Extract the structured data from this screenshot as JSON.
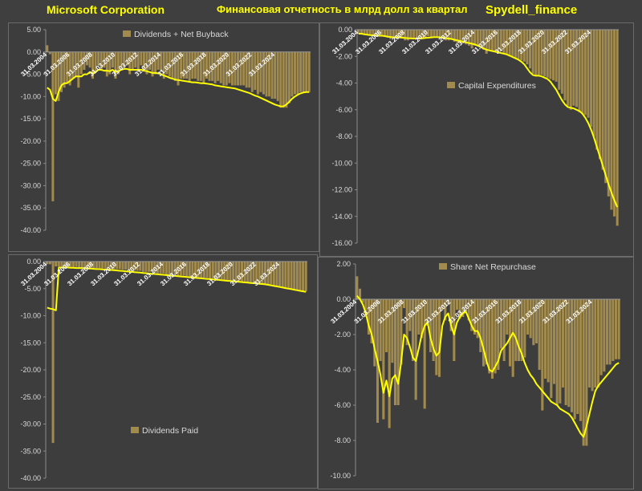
{
  "header": {
    "company": "Microsoft Corporation",
    "subtitle": "Финансовая отчетность в млрд долл за квартал",
    "brand": "Spydell_finance"
  },
  "colors": {
    "background": "#3f3f3f",
    "bar": "#a08a4e",
    "line": "#ffff00",
    "text": "#d9d9d9"
  },
  "chart_data": [
    {
      "type": "bar",
      "legend": "Dividends + Net Buyback",
      "legend_position": "top-center",
      "ylim": [
        -40,
        5
      ],
      "yticks": [
        "5.00",
        "0.00",
        "-5.00",
        "-10.00",
        "-15.00",
        "-20.00",
        "-25.00",
        "-30.00",
        "-35.00",
        "-40.00"
      ],
      "xtick_labels": [
        "31.03.2004",
        "31.03.2006",
        "31.03.2008",
        "31.03.2010",
        "31.03.2012",
        "31.03.2014",
        "31.03.2016",
        "31.03.2018",
        "31.03.2020",
        "31.03.2022",
        "31.03.2024"
      ],
      "values": [
        1.5,
        -0.5,
        -33.5,
        -9.5,
        -11,
        -9,
        -8,
        -7,
        -7.5,
        -6,
        -5.5,
        -8,
        -5,
        -4,
        -3,
        -3.5,
        -6,
        -4.5,
        -3,
        -4,
        -3.5,
        -5.5,
        -5,
        -3.5,
        -6,
        -5,
        -4,
        -3.5,
        -3,
        -5,
        -4,
        -3.5,
        -4.5,
        -3,
        -4,
        -5,
        -4,
        -5.5,
        -5,
        -4,
        -4.5,
        -6,
        -5,
        -5.5,
        -6,
        -6.5,
        -7.5,
        -6,
        -6,
        -6,
        -6.5,
        -6,
        -6,
        -6.5,
        -6.5,
        -7,
        -6,
        -6.5,
        -6.5,
        -7,
        -6.5,
        -7,
        -7.5,
        -7.5,
        -7,
        -7.5,
        -7.5,
        -7.5,
        -7.5,
        -7.5,
        -8,
        -8,
        -9,
        -8.5,
        -9.5,
        -9,
        -9.5,
        -10,
        -10,
        -10.5,
        -10.5,
        -11,
        -12.5,
        -12.5,
        -12.5,
        -11.5,
        -10,
        -9.5,
        -9.5,
        -9,
        -9,
        -9,
        -9
      ],
      "trend": [
        -8,
        -8.5,
        -10.5,
        -11,
        -9,
        -7.5,
        -7,
        -7,
        -6.5,
        -6,
        -5.5,
        -5.5,
        -5.5,
        -5,
        -5,
        -4.5,
        -4.8,
        -4.5,
        -4,
        -4,
        -4.2,
        -4.2,
        -4.3,
        -4,
        -4.5,
        -4.3,
        -4,
        -3.8,
        -3.8,
        -4,
        -4,
        -4,
        -4,
        -4,
        -4.2,
        -4.3,
        -4.5,
        -4.7,
        -4.7,
        -4.8,
        -5,
        -5.3,
        -5.5,
        -5.8,
        -6,
        -6.2,
        -6.3,
        -6.4,
        -6.5,
        -6.6,
        -6.7,
        -6.8,
        -6.8,
        -6.9,
        -7,
        -7,
        -7.1,
        -7.2,
        -7.3,
        -7.5,
        -7.6,
        -7.7,
        -7.8,
        -7.9,
        -8,
        -8.1,
        -8.2,
        -8.4,
        -8.6,
        -8.8,
        -9,
        -9.2,
        -9.5,
        -9.8,
        -10,
        -10.3,
        -10.6,
        -10.9,
        -11.2,
        -11.5,
        -11.8,
        -12,
        -12.2,
        -12.2,
        -11.8,
        -11.2,
        -10.5,
        -10,
        -9.6,
        -9.3,
        -9.1,
        -9,
        -9
      ]
    },
    {
      "type": "bar",
      "legend": "Capital Expenditures",
      "legend_position": "center-right",
      "ylim": [
        -16,
        0
      ],
      "yticks": [
        "0.00",
        "-2.00",
        "-4.00",
        "-6.00",
        "-8.00",
        "-10.00",
        "-12.00",
        "-14.00",
        "-16.00"
      ],
      "xtick_labels": [
        "31.03.2004",
        "31.03.2006",
        "31.03.2008",
        "31.03.2010",
        "31.03.2012",
        "31.03.2014",
        "31.03.2016",
        "31.03.2018",
        "31.03.2020",
        "31.03.2022",
        "31.03.2024"
      ],
      "values": [
        -0.3,
        -0.3,
        -0.3,
        -0.4,
        -0.4,
        -0.4,
        -0.5,
        -0.4,
        -0.4,
        -0.5,
        -0.6,
        -0.7,
        -0.6,
        -0.6,
        -0.5,
        -0.6,
        -0.8,
        -0.8,
        -0.7,
        -0.7,
        -0.6,
        -0.7,
        -0.6,
        -0.6,
        -0.5,
        -0.6,
        -0.5,
        -0.5,
        -0.6,
        -0.6,
        -0.8,
        -0.8,
        -0.7,
        -0.9,
        -1.0,
        -1.0,
        -1.0,
        -1.1,
        -1.2,
        -1.4,
        -1.2,
        -1.2,
        -1.3,
        -1.5,
        -1.8,
        -1.5,
        -1.6,
        -1.7,
        -1.7,
        -1.6,
        -1.8,
        -1.8,
        -2.0,
        -2.0,
        -2.1,
        -2.2,
        -2.3,
        -2.4,
        -2.6,
        -2.9,
        -3.3,
        -3.5,
        -3.4,
        -3.4,
        -3.5,
        -3.6,
        -3.7,
        -3.8,
        -3.9,
        -4.5,
        -4.8,
        -5.3,
        -5.7,
        -6.0,
        -5.7,
        -5.8,
        -6.2,
        -6.3,
        -6.4,
        -6.6,
        -7.3,
        -8.0,
        -9.0,
        -9.7,
        -10.5,
        -11.5,
        -12.5,
        -13.5,
        -14.0,
        -14.7
      ],
      "trend": [
        -0.3,
        -0.3,
        -0.35,
        -0.38,
        -0.4,
        -0.42,
        -0.45,
        -0.45,
        -0.45,
        -0.48,
        -0.52,
        -0.55,
        -0.57,
        -0.58,
        -0.58,
        -0.6,
        -0.62,
        -0.64,
        -0.65,
        -0.66,
        -0.66,
        -0.66,
        -0.65,
        -0.62,
        -0.6,
        -0.58,
        -0.56,
        -0.56,
        -0.57,
        -0.6,
        -0.63,
        -0.66,
        -0.7,
        -0.75,
        -0.8,
        -0.85,
        -0.9,
        -0.95,
        -1.0,
        -1.05,
        -1.1,
        -1.2,
        -1.3,
        -1.4,
        -1.5,
        -1.55,
        -1.6,
        -1.65,
        -1.7,
        -1.75,
        -1.8,
        -1.85,
        -1.95,
        -2.05,
        -2.15,
        -2.25,
        -2.4,
        -2.6,
        -2.9,
        -3.2,
        -3.4,
        -3.45,
        -3.45,
        -3.5,
        -3.6,
        -3.7,
        -3.9,
        -4.2,
        -4.5,
        -4.9,
        -5.3,
        -5.6,
        -5.8,
        -5.85,
        -5.9,
        -6.0,
        -6.1,
        -6.3,
        -6.6,
        -7.0,
        -7.5,
        -8.1,
        -8.8,
        -9.5,
        -10.2,
        -10.9,
        -11.6,
        -12.2,
        -12.8,
        -13.3
      ]
    },
    {
      "type": "bar",
      "legend": "Dividends Paid",
      "legend_position": "bottom-center",
      "ylim": [
        -40,
        0
      ],
      "yticks": [
        "0.00",
        "-5.00",
        "-10.00",
        "-15.00",
        "-20.00",
        "-25.00",
        "-30.00",
        "-35.00",
        "-40.00"
      ],
      "xtick_labels": [
        "31.03.2004",
        "31.03.2006",
        "31.03.2008",
        "31.03.2010",
        "31.03.2012",
        "31.03.2014",
        "31.03.2016",
        "31.03.2018",
        "31.03.2020",
        "31.03.2022",
        "31.03.2024"
      ],
      "values": [
        -0.5,
        -0.5,
        -33.5,
        -0.9,
        -0.9,
        -0.9,
        -0.9,
        -1.0,
        -1.0,
        -1.0,
        -1.0,
        -1.1,
        -1.1,
        -1.1,
        -1.1,
        -1.2,
        -1.2,
        -1.2,
        -1.2,
        -1.3,
        -1.3,
        -1.3,
        -1.3,
        -1.4,
        -1.4,
        -1.4,
        -1.5,
        -1.5,
        -1.5,
        -1.6,
        -1.7,
        -1.7,
        -1.7,
        -1.9,
        -1.9,
        -1.9,
        -1.9,
        -2.1,
        -2.2,
        -2.2,
        -2.2,
        -2.4,
        -2.4,
        -2.4,
        -2.4,
        -2.6,
        -2.6,
        -2.6,
        -2.7,
        -2.8,
        -2.8,
        -2.9,
        -2.9,
        -3.0,
        -3.0,
        -3.0,
        -3.1,
        -3.1,
        -3.2,
        -3.2,
        -3.3,
        -3.4,
        -3.4,
        -3.5,
        -3.6,
        -3.6,
        -3.7,
        -3.8,
        -3.8,
        -3.9,
        -4.0,
        -4.0,
        -4.1,
        -4.2,
        -4.3,
        -4.3,
        -4.4,
        -4.5,
        -4.5,
        -4.6,
        -4.7,
        -4.8,
        -4.8,
        -4.9,
        -5.0,
        -5.1,
        -5.2,
        -5.3,
        -5.4,
        -5.5
      ],
      "trend": [
        -8.5,
        -8.7,
        -8.8,
        -9.0,
        -1.1,
        -1.1,
        -1.1,
        -1.1,
        -1.15,
        -1.15,
        -1.2,
        -1.2,
        -1.2,
        -1.25,
        -1.3,
        -1.3,
        -1.35,
        -1.4,
        -1.4,
        -1.45,
        -1.5,
        -1.5,
        -1.55,
        -1.6,
        -1.65,
        -1.7,
        -1.75,
        -1.8,
        -1.85,
        -1.9,
        -1.95,
        -2.0,
        -2.05,
        -2.1,
        -2.15,
        -2.2,
        -2.25,
        -2.3,
        -2.35,
        -2.4,
        -2.45,
        -2.5,
        -2.55,
        -2.6,
        -2.65,
        -2.7,
        -2.75,
        -2.8,
        -2.85,
        -2.9,
        -2.95,
        -3.0,
        -3.05,
        -3.1,
        -3.15,
        -3.2,
        -3.25,
        -3.3,
        -3.35,
        -3.4,
        -3.45,
        -3.5,
        -3.55,
        -3.6,
        -3.65,
        -3.7,
        -3.75,
        -3.8,
        -3.85,
        -3.9,
        -3.95,
        -4.0,
        -4.05,
        -4.1,
        -4.15,
        -4.2,
        -4.3,
        -4.4,
        -4.5,
        -4.6,
        -4.7,
        -4.8,
        -4.9,
        -5.0,
        -5.1,
        -5.2,
        -5.3,
        -5.4,
        -5.5,
        -5.6
      ]
    },
    {
      "type": "bar",
      "legend": "Share Net Repurchase",
      "legend_position": "top-center",
      "ylim": [
        -10,
        2
      ],
      "yticks": [
        "2.00",
        "0.00",
        "-2.00",
        "-4.00",
        "-6.00",
        "-8.00",
        "-10.00"
      ],
      "xtick_labels": [
        "31.03.2004",
        "31.03.2006",
        "31.03.2008",
        "31.03.2010",
        "31.03.2012",
        "31.03.2014",
        "31.03.2016",
        "31.03.2018",
        "31.03.2020",
        "31.03.2022",
        "31.03.2024"
      ],
      "values": [
        1.3,
        0.6,
        -0.2,
        -1.0,
        -2.0,
        -2.5,
        -3.8,
        -7.0,
        -3.5,
        -6.8,
        -3.0,
        -7.3,
        -3.6,
        -6.0,
        -6.0,
        -3.7,
        -0.5,
        -2.6,
        -1.8,
        -3.5,
        -5.7,
        -2.0,
        -2.2,
        -6.2,
        -1.5,
        -3.0,
        -3.5,
        -4.3,
        -4.4,
        -0.6,
        -1.2,
        -0.3,
        -1.8,
        -3.5,
        -0.6,
        -1.1,
        -1.0,
        -0.7,
        -1.2,
        -1.8,
        -2.0,
        -2.2,
        -3.0,
        -3.8,
        -3.7,
        -4.2,
        -4.5,
        -4.2,
        -4.0,
        -2.8,
        -3.5,
        -2.0,
        -3.8,
        -4.4,
        -3.5,
        -3.5,
        -3.5,
        -3.3,
        -2.0,
        -2.2,
        -2.6,
        -2.5,
        -4.0,
        -6.3,
        -4.5,
        -4.7,
        -5.6,
        -4.8,
        -6.0,
        -5.9,
        -5.0,
        -6.0,
        -6.1,
        -6.4,
        -6.8,
        -6.5,
        -6.9,
        -8.3,
        -8.3,
        -5.0,
        -5.2,
        -5.0,
        -5.0,
        -4.3,
        -4.1,
        -3.7,
        -3.7,
        -3.5,
        -3.4,
        -3.4
      ],
      "trend": [
        0.2,
        0.0,
        -0.3,
        -0.8,
        -1.5,
        -2.0,
        -2.8,
        -3.5,
        -4.3,
        -5.3,
        -4.6,
        -5.5,
        -4.5,
        -4.3,
        -4.8,
        -3.6,
        -2.0,
        -2.2,
        -2.7,
        -3.3,
        -3.5,
        -2.8,
        -2.0,
        -1.5,
        -1.3,
        -2.2,
        -2.8,
        -3.2,
        -3.0,
        -1.5,
        -1.0,
        -0.8,
        -1.5,
        -2.0,
        -1.3,
        -1.0,
        -0.8,
        -0.7,
        -1.1,
        -1.5,
        -1.8,
        -1.8,
        -2.2,
        -2.8,
        -3.5,
        -4.0,
        -4.1,
        -3.8,
        -3.5,
        -2.9,
        -2.7,
        -2.5,
        -2.2,
        -1.9,
        -2.2,
        -2.7,
        -3.1,
        -3.6,
        -4.0,
        -4.3,
        -4.5,
        -4.8,
        -5.0,
        -5.2,
        -5.4,
        -5.6,
        -5.8,
        -5.9,
        -6.0,
        -6.2,
        -6.3,
        -6.4,
        -6.5,
        -6.7,
        -7.0,
        -7.3,
        -7.6,
        -7.8,
        -7.2,
        -6.5,
        -5.8,
        -5.2,
        -4.9,
        -4.7,
        -4.5,
        -4.3,
        -4.1,
        -3.9,
        -3.7,
        -3.6
      ]
    }
  ]
}
